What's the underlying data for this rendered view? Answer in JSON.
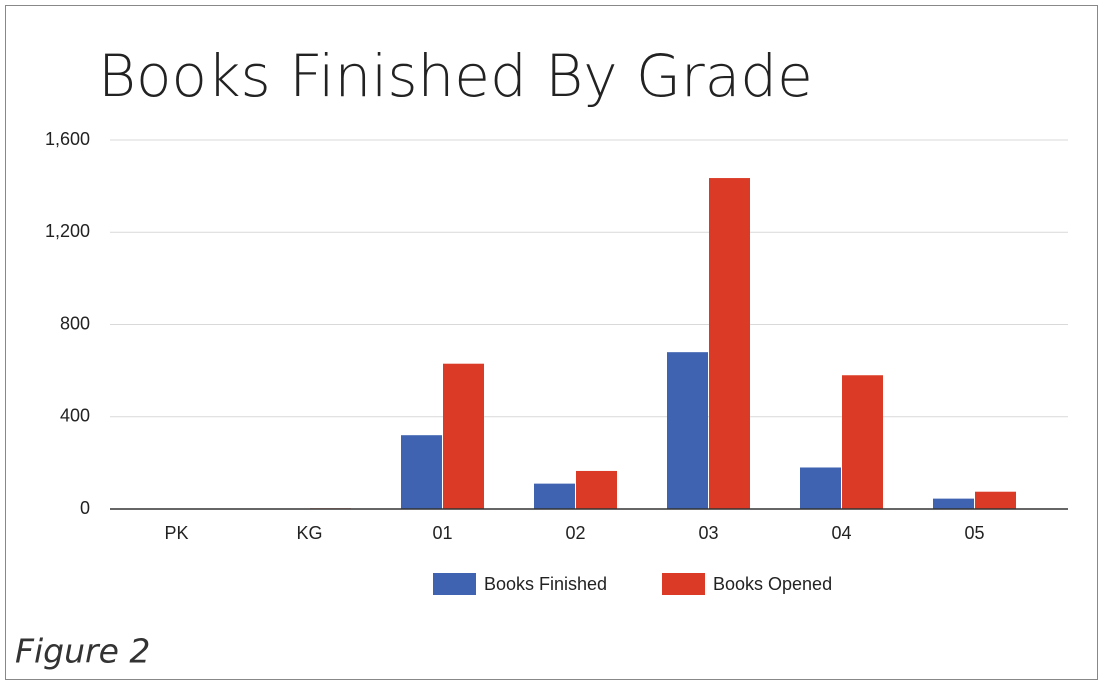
{
  "chart_data": {
    "type": "bar",
    "title": "Books Finished By Grade",
    "categories": [
      "PK",
      "KG",
      "01",
      "02",
      "03",
      "04",
      "05"
    ],
    "series": [
      {
        "name": "Books Finished",
        "color": "#3f63b1",
        "values": [
          2,
          1,
          320,
          110,
          680,
          180,
          45
        ]
      },
      {
        "name": "Books Opened",
        "color": "#db3b26",
        "values": [
          2,
          3,
          630,
          165,
          1435,
          580,
          75
        ]
      }
    ],
    "ylim": [
      0,
      1600
    ],
    "yticks": [
      0,
      400,
      800,
      {
        "value": 1200,
        "label": "1,200"
      },
      {
        "value": 1600,
        "label": "1,600"
      }
    ],
    "grid": true,
    "legend": "bottom"
  },
  "figure_label": "Figure 2"
}
